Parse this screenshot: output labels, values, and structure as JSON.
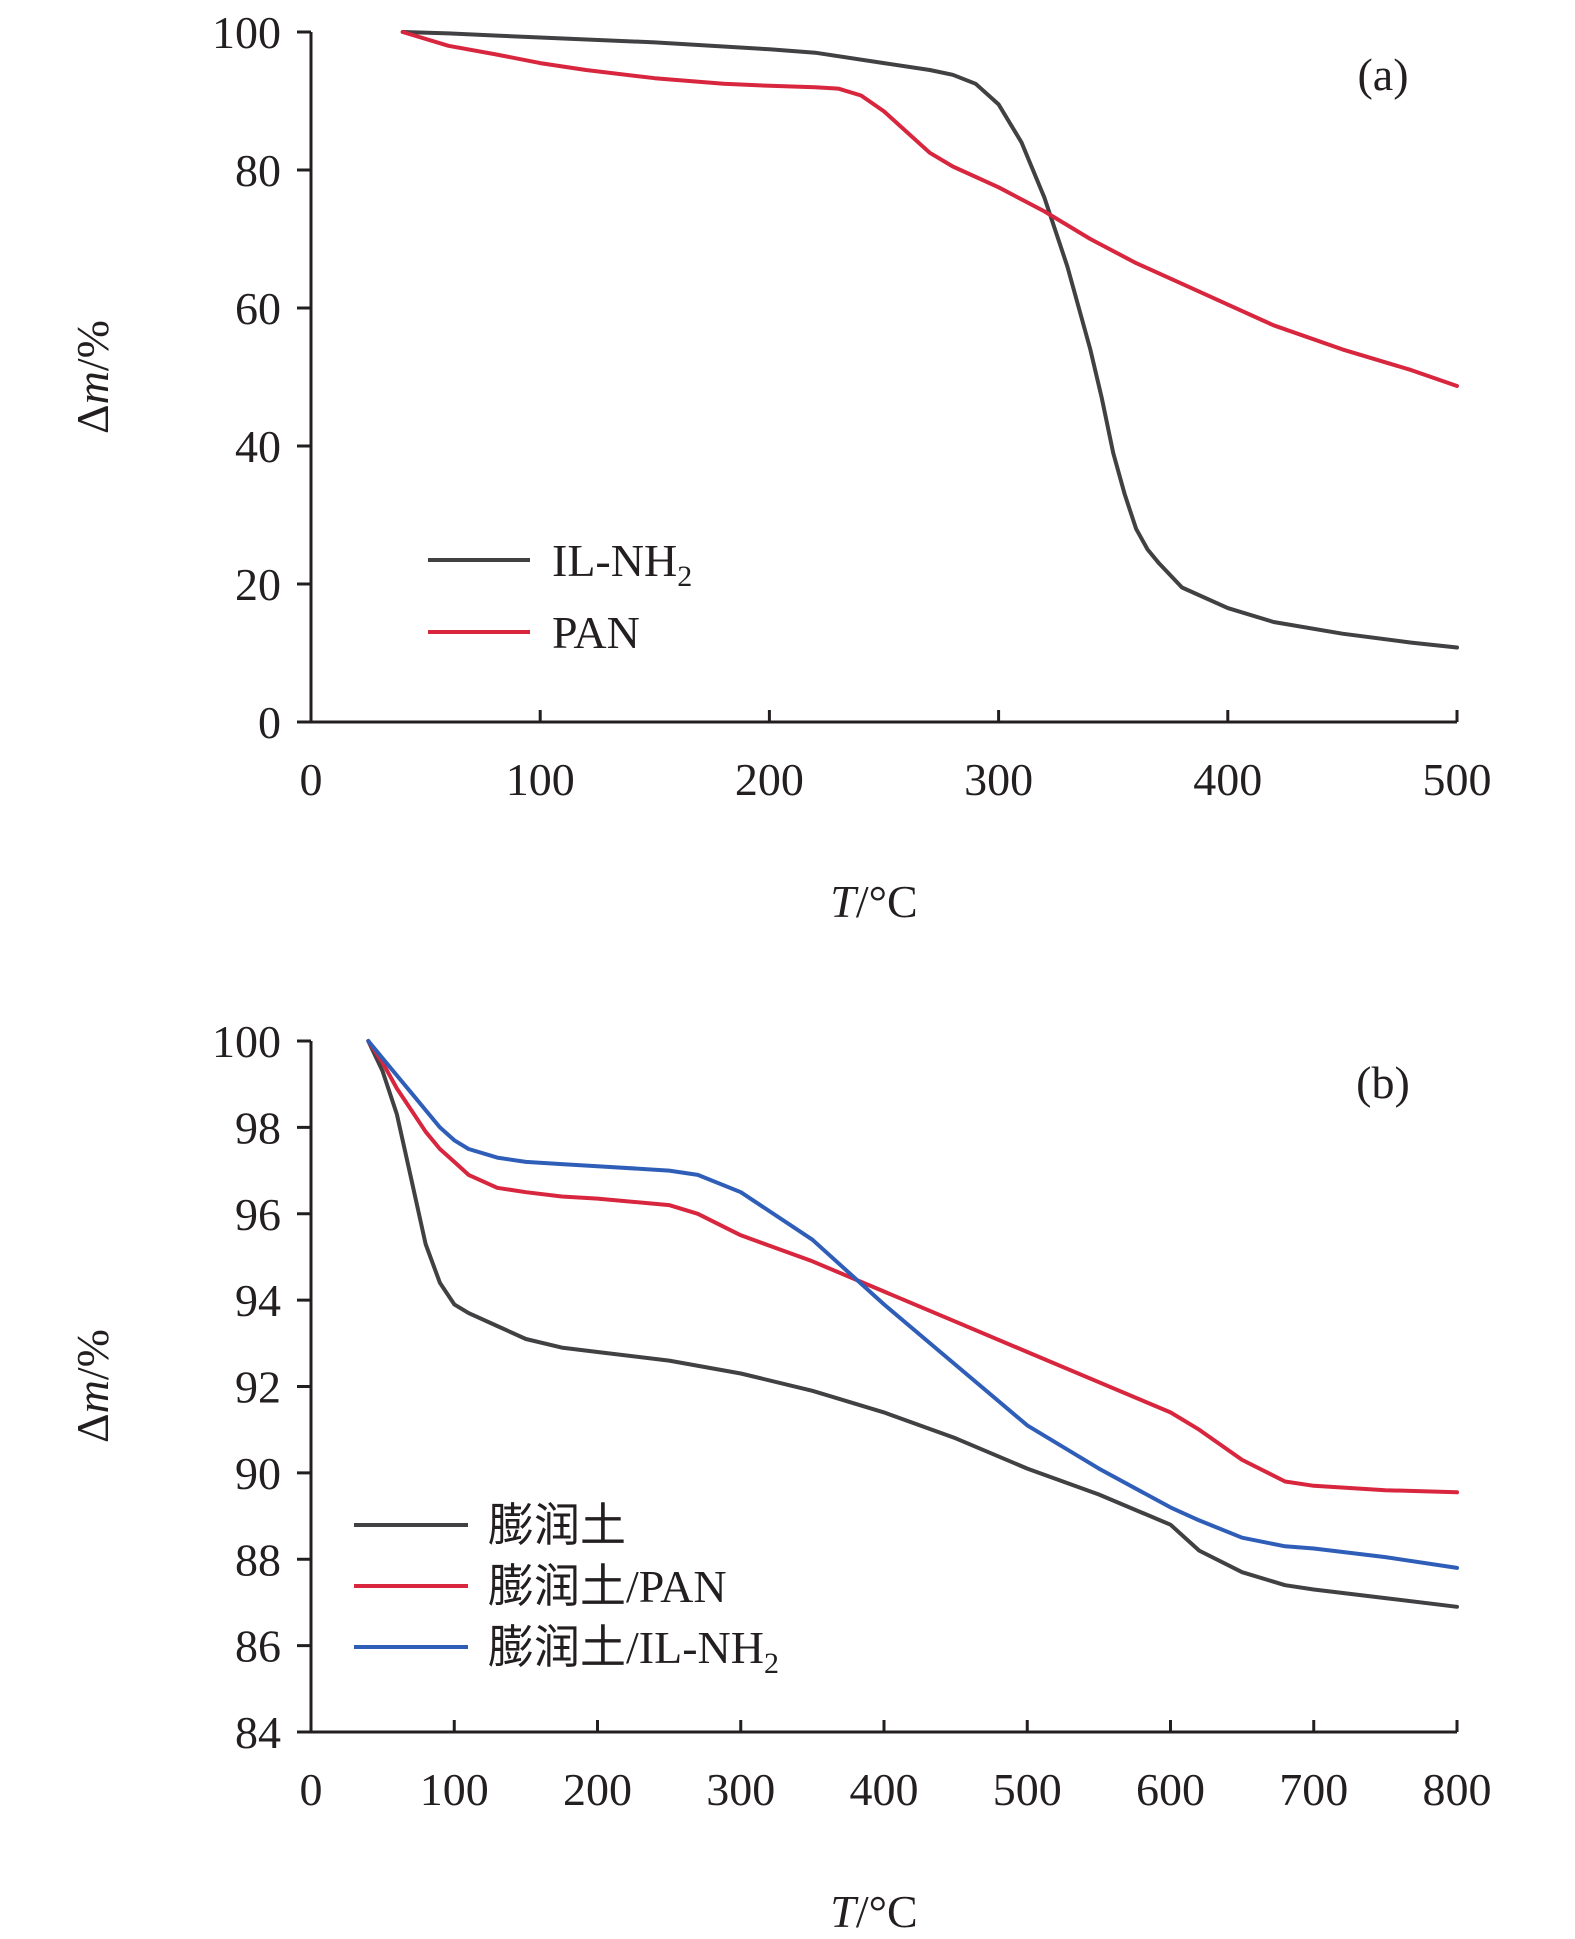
{
  "chart_data": [
    {
      "type": "line",
      "panel_label": "(a)",
      "xlabel": "T/°C",
      "ylabel": "Δm/%",
      "xlim": [
        0,
        500
      ],
      "ylim": [
        0,
        100
      ],
      "xticks": [
        0,
        100,
        200,
        300,
        400,
        500
      ],
      "yticks": [
        0,
        20,
        40,
        60,
        80,
        100
      ],
      "legend_position": "lower-left",
      "grid": false,
      "series": [
        {
          "name": "IL-NH2",
          "legend_main": "IL-NH",
          "legend_sub": "2",
          "color": "#414042",
          "x": [
            40,
            60,
            80,
            100,
            150,
            200,
            220,
            250,
            270,
            280,
            290,
            300,
            310,
            320,
            330,
            340,
            345,
            350,
            355,
            360,
            365,
            370,
            380,
            400,
            420,
            450,
            480,
            500
          ],
          "y": [
            100,
            99.8,
            99.5,
            99.2,
            98.5,
            97.5,
            97,
            95.5,
            94.5,
            93.8,
            92.5,
            89.5,
            84,
            76,
            66,
            54,
            47,
            39,
            33,
            28,
            25,
            23,
            19.5,
            16.5,
            14.5,
            12.8,
            11.5,
            10.8
          ]
        },
        {
          "name": "PAN",
          "legend_main": "PAN",
          "legend_sub": "",
          "color": "#d7263d",
          "x": [
            40,
            60,
            80,
            100,
            120,
            150,
            180,
            200,
            220,
            230,
            240,
            250,
            260,
            270,
            280,
            300,
            320,
            340,
            360,
            380,
            400,
            420,
            450,
            480,
            500
          ],
          "y": [
            100,
            98,
            96.8,
            95.5,
            94.5,
            93.3,
            92.5,
            92.2,
            92,
            91.8,
            90.8,
            88.5,
            85.5,
            82.5,
            80.5,
            77.5,
            74,
            70,
            66.5,
            63.5,
            60.5,
            57.5,
            54,
            51,
            48.7
          ]
        }
      ]
    },
    {
      "type": "line",
      "panel_label": "(b)",
      "xlabel": "T/°C",
      "ylabel": "Δm/%",
      "xlim": [
        0,
        800
      ],
      "ylim": [
        84,
        100
      ],
      "xticks": [
        0,
        100,
        200,
        300,
        400,
        500,
        600,
        700,
        800
      ],
      "yticks": [
        84,
        86,
        88,
        90,
        92,
        94,
        96,
        98,
        100
      ],
      "legend_position": "lower-left",
      "grid": false,
      "series": [
        {
          "name": "膨润土",
          "legend_main": "膨润土",
          "legend_sub": "",
          "color": "#414042",
          "x": [
            40,
            50,
            60,
            70,
            80,
            90,
            100,
            110,
            130,
            150,
            175,
            200,
            250,
            300,
            350,
            400,
            450,
            500,
            550,
            600,
            620,
            650,
            680,
            700,
            750,
            800
          ],
          "y": [
            100,
            99.3,
            98.3,
            96.8,
            95.3,
            94.4,
            93.9,
            93.7,
            93.4,
            93.1,
            92.9,
            92.8,
            92.6,
            92.3,
            91.9,
            91.4,
            90.8,
            90.1,
            89.5,
            88.8,
            88.2,
            87.7,
            87.4,
            87.3,
            87.1,
            86.9
          ]
        },
        {
          "name": "膨润土/PAN",
          "legend_main": "膨润土/PAN",
          "legend_sub": "",
          "color": "#d7263d",
          "x": [
            40,
            50,
            60,
            70,
            80,
            90,
            100,
            110,
            130,
            150,
            175,
            200,
            250,
            270,
            300,
            350,
            400,
            450,
            500,
            550,
            600,
            620,
            650,
            680,
            700,
            750,
            800
          ],
          "y": [
            100,
            99.5,
            98.9,
            98.4,
            97.9,
            97.5,
            97.2,
            96.9,
            96.6,
            96.5,
            96.4,
            96.35,
            96.2,
            96,
            95.5,
            94.9,
            94.2,
            93.5,
            92.8,
            92.1,
            91.4,
            91,
            90.3,
            89.8,
            89.7,
            89.6,
            89.55
          ]
        },
        {
          "name": "膨润土/IL-NH2",
          "legend_main": "膨润土/IL-NH",
          "legend_sub": "2",
          "color": "#2f5eb8",
          "x": [
            40,
            50,
            60,
            70,
            80,
            90,
            100,
            110,
            130,
            150,
            175,
            200,
            250,
            270,
            300,
            350,
            400,
            450,
            500,
            550,
            600,
            620,
            650,
            680,
            700,
            750,
            800
          ],
          "y": [
            100,
            99.6,
            99.2,
            98.8,
            98.4,
            98,
            97.7,
            97.5,
            97.3,
            97.2,
            97.15,
            97.1,
            97,
            96.9,
            96.5,
            95.4,
            93.9,
            92.5,
            91.1,
            90.1,
            89.2,
            88.9,
            88.5,
            88.3,
            88.25,
            88.05,
            87.8
          ]
        }
      ]
    }
  ]
}
